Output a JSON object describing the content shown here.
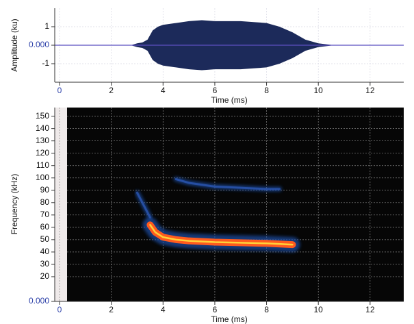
{
  "chart_data": [
    {
      "type": "waveform",
      "ylabel": "Amplitude (ku)",
      "xlabel": "Time (ms)",
      "x": [
        2.8,
        3.0,
        3.2,
        3.4,
        3.6,
        3.8,
        4.0,
        4.5,
        5.0,
        5.5,
        6.0,
        6.5,
        7.0,
        7.5,
        8.0,
        8.5,
        9.0,
        9.5,
        10.0,
        10.5
      ],
      "values": [
        0.02,
        0.1,
        0.15,
        0.3,
        0.8,
        1.0,
        1.1,
        1.2,
        1.3,
        1.35,
        1.3,
        1.3,
        1.3,
        1.25,
        1.2,
        1.0,
        0.7,
        0.3,
        0.1,
        0.02
      ],
      "color": "#1c2a5a",
      "xlim": [
        -0.185,
        13.3
      ],
      "ylim": [
        -2,
        2
      ],
      "xticks": [
        0,
        2,
        4,
        6,
        8,
        10,
        12
      ],
      "yticks": [
        1,
        {
          "value": 0,
          "label": "0.000"
        },
        -1
      ],
      "grid": true
    },
    {
      "type": "spectrogram",
      "ylabel": "Frequency (kHz)",
      "xlabel": "Time (ms)",
      "series": [
        {
          "color": "#ff5a1e",
          "x": [
            3.5,
            3.7,
            4.0,
            4.5,
            5.0,
            6.0,
            7.0,
            8.0,
            9.0
          ],
          "values": [
            62,
            56,
            52,
            50,
            49,
            48,
            47.5,
            47,
            46
          ]
        },
        {
          "color": "#2a55b0",
          "x": [
            4.5,
            5.0,
            6.0,
            7.0,
            8.0,
            8.5
          ],
          "values": [
            99,
            96,
            93,
            92,
            91,
            91
          ]
        },
        {
          "color": "#2a55b0",
          "x": [
            3.0,
            3.2,
            3.5
          ],
          "values": [
            88,
            80,
            68
          ]
        }
      ],
      "xlim": [
        -0.185,
        13.3
      ],
      "ylim": [
        0,
        157
      ],
      "xticks": [
        0,
        2,
        4,
        6,
        8,
        10,
        12
      ],
      "yticks": [
        {
          "value": 0,
          "label": "0.000"
        },
        20,
        30,
        40,
        50,
        60,
        70,
        80,
        90,
        100,
        110,
        120,
        130,
        140,
        150
      ],
      "grid": true
    }
  ]
}
